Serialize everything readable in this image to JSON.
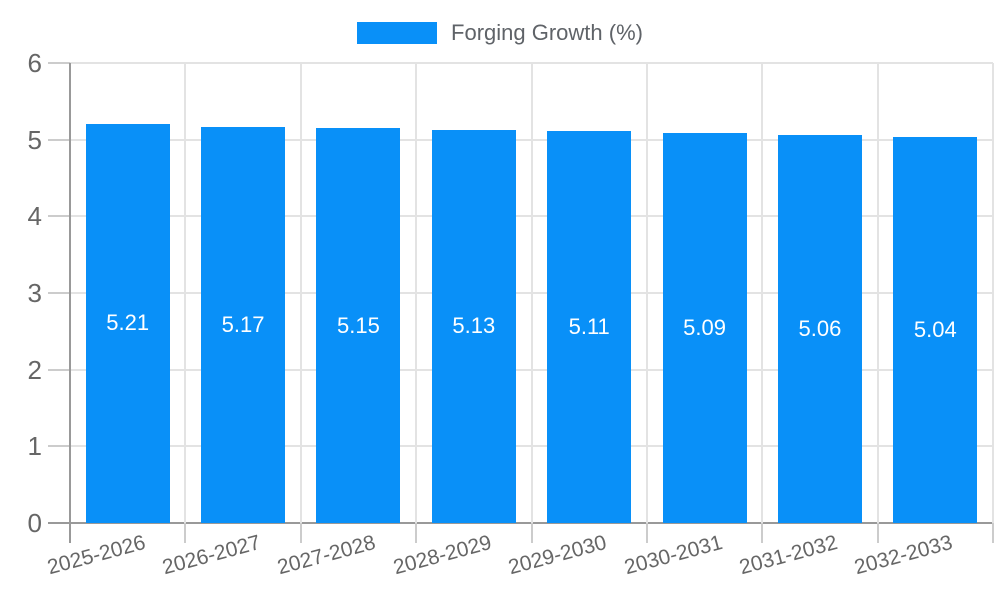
{
  "colors": {
    "bar": "#0990f8",
    "grid": "#e3e3e3",
    "tick": "#cccccc",
    "axis": "#999999",
    "tick_text": "#666666",
    "legend_text": "#5f6368",
    "value_text": "#ffffff",
    "background": "#ffffff"
  },
  "chart_data": {
    "type": "bar",
    "title": "",
    "legend": "Forging Growth (%)",
    "legend_position": "top",
    "categories": [
      "2025-2026",
      "2026-2027",
      "2027-2028",
      "2028-2029",
      "2029-2030",
      "2030-2031",
      "2031-2032",
      "2032-2033"
    ],
    "values": [
      5.21,
      5.17,
      5.15,
      5.13,
      5.11,
      5.09,
      5.06,
      5.04
    ],
    "value_labels": [
      "5.21",
      "5.17",
      "5.15",
      "5.13",
      "5.11",
      "5.09",
      "5.06",
      "5.04"
    ],
    "xlabel": "",
    "ylabel": "",
    "y_ticks": [
      0,
      1,
      2,
      3,
      4,
      5,
      6
    ],
    "ylim": [
      0,
      6
    ],
    "grid": true
  }
}
